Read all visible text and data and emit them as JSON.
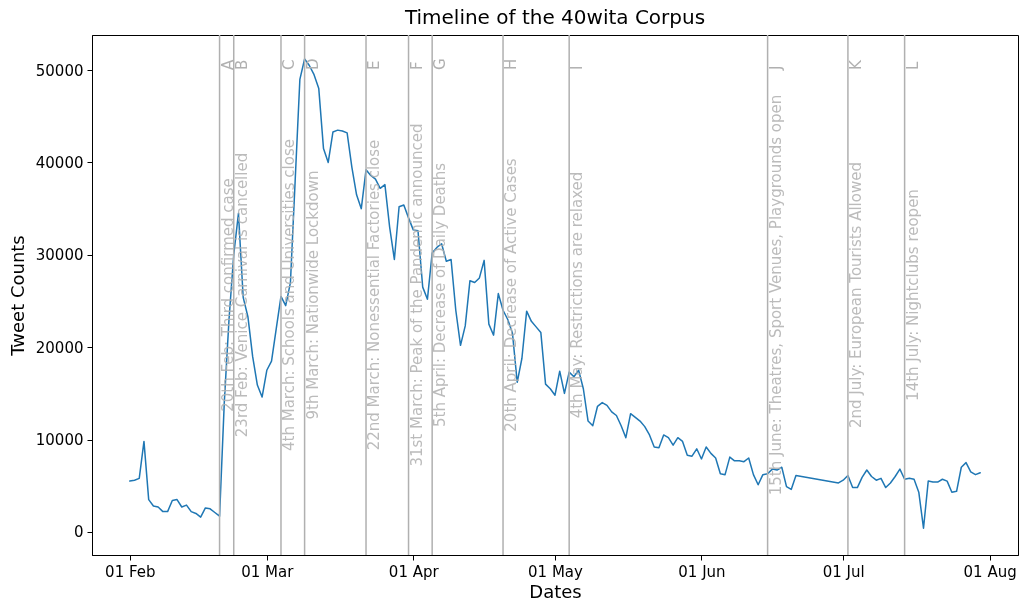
{
  "chart_data": {
    "type": "line",
    "title": "Timeline of the 40wita Corpus",
    "xlabel": "Dates",
    "ylabel": "Tweet Counts",
    "x": [
      "--02-01",
      "--02-02",
      "--02-03",
      "--02-04",
      "--02-05",
      "--02-06",
      "--02-07",
      "--02-08",
      "--02-09",
      "--02-10",
      "--02-11",
      "--02-12",
      "--02-13",
      "--02-14",
      "--02-15",
      "--02-16",
      "--02-17",
      "--02-18",
      "--02-19",
      "--02-20",
      "--02-21",
      "--02-22",
      "--02-23",
      "--02-24",
      "--02-25",
      "--02-26",
      "--02-27",
      "--02-28",
      "--02-29",
      "--03-01",
      "--03-02",
      "--03-03",
      "--03-04",
      "--03-05",
      "--03-06",
      "--03-07",
      "--03-08",
      "--03-09",
      "--03-10",
      "--03-11",
      "--03-12",
      "--03-13",
      "--03-14",
      "--03-15",
      "--03-16",
      "--03-17",
      "--03-18",
      "--03-19",
      "--03-20",
      "--03-21",
      "--03-22",
      "--03-23",
      "--03-24",
      "--03-25",
      "--03-26",
      "--03-27",
      "--03-28",
      "--03-29",
      "--03-30",
      "--03-31",
      "--04-01",
      "--04-02",
      "--04-03",
      "--04-04",
      "--04-05",
      "--04-06",
      "--04-07",
      "--04-08",
      "--04-09",
      "--04-10",
      "--04-11",
      "--04-12",
      "--04-13",
      "--04-14",
      "--04-15",
      "--04-16",
      "--04-17",
      "--04-18",
      "--04-19",
      "--04-20",
      "--04-21",
      "--04-22",
      "--04-23",
      "--04-24",
      "--04-25",
      "--04-26",
      "--04-27",
      "--04-28",
      "--04-29",
      "--04-30",
      "--05-01",
      "--05-02",
      "--05-03",
      "--05-04",
      "--05-05",
      "--05-06",
      "--05-07",
      "--05-08",
      "--05-09",
      "--05-10",
      "--05-11",
      "--05-12",
      "--05-13",
      "--05-14",
      "--05-15",
      "--05-16",
      "--05-17",
      "--05-18",
      "--05-19",
      "--05-20",
      "--05-21",
      "--05-22",
      "--05-23",
      "--05-24",
      "--05-25",
      "--05-26",
      "--05-27",
      "--05-28",
      "--05-29",
      "--05-30",
      "--05-31",
      "--06-01",
      "--06-02",
      "--06-03",
      "--06-04",
      "--06-05",
      "--06-06",
      "--06-07",
      "--06-08",
      "--06-09",
      "--06-10",
      "--06-11",
      "--06-12",
      "--06-13",
      "--06-14",
      "--06-15",
      "--06-16",
      "--06-17",
      "--06-18",
      "--06-19",
      "--06-20",
      "--06-21",
      "--06-30",
      "--07-01",
      "--07-02",
      "--07-03",
      "--07-04",
      "--07-05",
      "--07-06",
      "--07-07",
      "--07-08",
      "--07-09",
      "--07-10",
      "--07-11",
      "--07-12",
      "--07-13",
      "--07-14",
      "--07-15",
      "--07-16",
      "--07-17",
      "--07-18",
      "--07-19",
      "--07-20",
      "--07-21",
      "--07-22",
      "--07-23",
      "--07-24",
      "--07-25",
      "--07-26",
      "--07-27",
      "--07-28",
      "--07-29",
      "--07-30"
    ],
    "series": [
      {
        "color": "#1f77b4",
        "values": [
          5500,
          5600,
          5800,
          9800,
          3500,
          2800,
          2700,
          2200,
          2200,
          3400,
          3500,
          2700,
          2900,
          2200,
          2000,
          1600,
          2600,
          2500,
          2100,
          1700,
          14000,
          23000,
          30000,
          34500,
          25400,
          23300,
          19000,
          15900,
          14600,
          17500,
          18500,
          22000,
          25500,
          24500,
          27000,
          38000,
          49000,
          51200,
          50500,
          49500,
          48000,
          41500,
          40000,
          43300,
          43500,
          43400,
          43200,
          39500,
          36500,
          35000,
          39200,
          38600,
          38200,
          37200,
          37600,
          33000,
          29500,
          35200,
          35400,
          34000,
          32700,
          32600,
          26500,
          25200,
          30200,
          30800,
          31200,
          29300,
          29500,
          24000,
          20200,
          22300,
          27200,
          27000,
          27500,
          29400,
          22500,
          21300,
          25800,
          24000,
          23000,
          21500,
          16200,
          18800,
          23900,
          22800,
          22200,
          21600,
          16000,
          15500,
          14800,
          17400,
          15000,
          17300,
          16800,
          17500,
          15500,
          12000,
          11500,
          13600,
          14000,
          13700,
          13000,
          12600,
          11500,
          10200,
          12800,
          12400,
          12000,
          11400,
          10500,
          9200,
          9100,
          10500,
          10200,
          9400,
          10200,
          9800,
          8300,
          8200,
          9000,
          7900,
          9200,
          8500,
          8000,
          6300,
          6200,
          8100,
          7700,
          7700,
          7600,
          8000,
          6200,
          5100,
          6200,
          6300,
          6800,
          6700,
          7000,
          4900,
          4600,
          6100,
          5300,
          5600,
          6100,
          4800,
          4800,
          5900,
          6700,
          6000,
          5600,
          5800,
          4800,
          5300,
          6000,
          6800,
          5700,
          5800,
          5700,
          4300,
          400,
          5500,
          5400,
          5400,
          5700,
          5500,
          4300,
          4400,
          7000,
          7500,
          6500,
          6200,
          6400
        ]
      }
    ],
    "xlim": [
      "--01-24",
      "--08-07"
    ],
    "xticks": [
      {
        "value": "--02-01",
        "label": "01 Feb"
      },
      {
        "value": "--03-01",
        "label": "01 Mar"
      },
      {
        "value": "--04-01",
        "label": "01 Apr"
      },
      {
        "value": "--05-01",
        "label": "01 May"
      },
      {
        "value": "--06-01",
        "label": "01 Jun"
      },
      {
        "value": "--07-01",
        "label": "01 Jul"
      },
      {
        "value": "--08-01",
        "label": "01 Aug"
      }
    ],
    "ylim": [
      -2500,
      53800
    ],
    "yticks": [
      0,
      10000,
      20000,
      30000,
      40000,
      50000
    ],
    "grid": false,
    "marker": "none",
    "line_style": "solid",
    "ref_lines": [
      {
        "axis": "x",
        "value": "--02-20",
        "label": "20th Feb: Third confirmed case",
        "color": "#b0b0b0"
      },
      {
        "axis": "x",
        "value": "--02-23",
        "label": "23rd Feb: Venice Carnival is cancelled",
        "color": "#b0b0b0"
      },
      {
        "axis": "x",
        "value": "--03-04",
        "label": "4th March: Schools and Universities close",
        "color": "#b0b0b0"
      },
      {
        "axis": "x",
        "value": "--03-09",
        "label": "9th March: Nationwide Lockdown",
        "color": "#b0b0b0"
      },
      {
        "axis": "x",
        "value": "--03-22",
        "label": "22nd March: Nonessential Factories close",
        "color": "#b0b0b0"
      },
      {
        "axis": "x",
        "value": "--03-31",
        "label": "31st March: Peak of the Pandemic announced",
        "color": "#b0b0b0"
      },
      {
        "axis": "x",
        "value": "--04-05",
        "label": "5th April: Decrease of Daily Deaths",
        "color": "#b0b0b0"
      },
      {
        "axis": "x",
        "value": "--04-20",
        "label": "20th April: Decrease of Active Cases",
        "color": "#b0b0b0"
      },
      {
        "axis": "x",
        "value": "--05-04",
        "label": "4th May: Restrictions are relaxed",
        "color": "#b0b0b0"
      },
      {
        "axis": "x",
        "value": "--06-15",
        "label": "15th June: Theatres, Sport Venues, Playgrounds open",
        "color": "#b0b0b0"
      },
      {
        "axis": "x",
        "value": "--07-02",
        "label": "2nd July: European Tourists Allowed",
        "color": "#b0b0b0"
      },
      {
        "axis": "x",
        "value": "--07-14",
        "label": "14th July: Nightclubs reopen",
        "color": "#b0b0b0"
      }
    ],
    "annotations": [
      {
        "text": "A",
        "x": "--02-20",
        "y": 50000
      },
      {
        "text": "B",
        "x": "--02-23",
        "y": 50000
      },
      {
        "text": "C",
        "x": "--03-04",
        "y": 50000
      },
      {
        "text": "D",
        "x": "--03-09",
        "y": 50000
      },
      {
        "text": "E",
        "x": "--03-22",
        "y": 50000
      },
      {
        "text": "F",
        "x": "--03-31",
        "y": 50000
      },
      {
        "text": "G",
        "x": "--04-05",
        "y": 50000
      },
      {
        "text": "H",
        "x": "--04-20",
        "y": 50000
      },
      {
        "text": "I",
        "x": "--05-04",
        "y": 50000
      },
      {
        "text": "J",
        "x": "--06-15",
        "y": 50000
      },
      {
        "text": "K",
        "x": "--07-02",
        "y": 50000
      },
      {
        "text": "L",
        "x": "--07-14",
        "y": 50000
      }
    ]
  }
}
